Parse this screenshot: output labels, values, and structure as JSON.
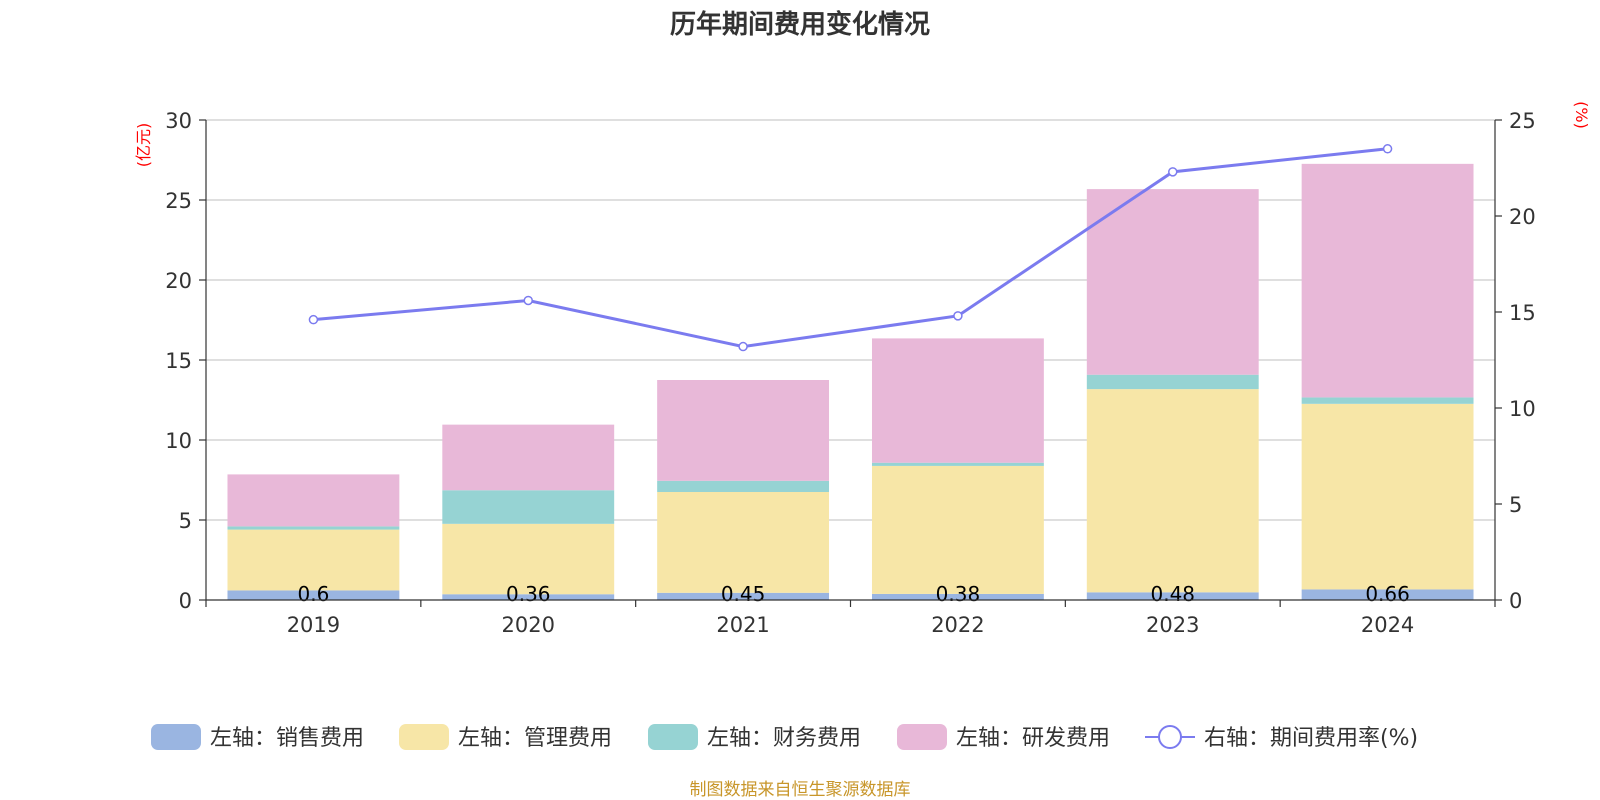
{
  "chart_data": {
    "type": "bar",
    "stacked": true,
    "title": "历年期间费用变化情况",
    "categories": [
      "2019",
      "2020",
      "2021",
      "2022",
      "2023",
      "2024"
    ],
    "left_axis": {
      "unit": "(亿元)",
      "ylim": [
        0,
        30
      ],
      "ticks": [
        "0",
        "5",
        "10",
        "15",
        "20",
        "25",
        "30"
      ]
    },
    "right_axis": {
      "unit": "(%)",
      "ylim": [
        0,
        25
      ],
      "ticks": [
        "0",
        "5",
        "10",
        "15",
        "20",
        "25"
      ]
    },
    "series": [
      {
        "name": "左轴：销售费用",
        "color": "#9ab5e1",
        "axis": "left",
        "values": [
          0.6,
          0.36,
          0.45,
          0.38,
          0.48,
          0.66
        ],
        "labels": [
          "0.6",
          "0.36",
          "0.45",
          "0.38",
          "0.48",
          "0.66"
        ]
      },
      {
        "name": "左轴：管理费用",
        "color": "#f7e6a7",
        "axis": "left",
        "values": [
          3.8,
          4.4,
          6.3,
          8.0,
          12.7,
          11.6
        ]
      },
      {
        "name": "左轴：财务费用",
        "color": "#96d3d3",
        "axis": "left",
        "values": [
          0.2,
          2.1,
          0.7,
          0.2,
          0.9,
          0.4
        ]
      },
      {
        "name": "左轴：研发费用",
        "color": "#e8b8d8",
        "axis": "left",
        "values": [
          3.25,
          4.1,
          6.3,
          7.77,
          11.6,
          14.6
        ]
      },
      {
        "name": "右轴：期间费用率(%)",
        "color": "#7b7bef",
        "axis": "right",
        "type": "line",
        "values": [
          14.6,
          15.6,
          13.2,
          14.8,
          22.3,
          23.5
        ]
      }
    ],
    "legend_position": "bottom",
    "grid": true
  },
  "footer": {
    "source": "制图数据来自恒生聚源数据库"
  }
}
